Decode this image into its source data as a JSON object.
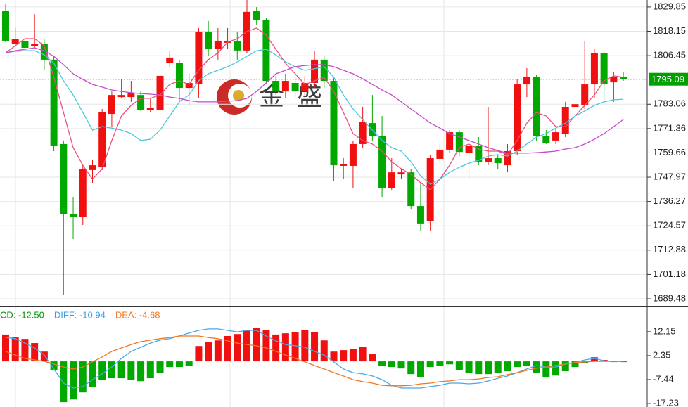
{
  "watermark": "金 盛",
  "chart_data": [
    {
      "type": "candlestick",
      "ylim": [
        1686.1,
        1833.2
      ],
      "yticks": [
        1829.85,
        1818.15,
        1806.45,
        1783.06,
        1771.36,
        1759.66,
        1747.97,
        1736.27,
        1724.57,
        1712.88,
        1701.18,
        1689.48
      ],
      "grid": true,
      "last_price": 1795.09,
      "last_price_color": "#00a000",
      "up_color": "#f01010",
      "down_color": "#00a800",
      "open": [
        1828.1,
        1812.2,
        1813.6,
        1810.9,
        1812.2,
        1804.5,
        1763.9,
        1730.1,
        1729.0,
        1751.4,
        1752.7,
        1778.4,
        1786.5,
        1786.5,
        1787.5,
        1780.1,
        1780.1,
        1802.8,
        1802.8,
        1790.9,
        1792.6,
        1818.0,
        1809.5,
        1812.6,
        1813.6,
        1808.9,
        1828.1,
        1823.7,
        1794.3,
        1789.2,
        1793.3,
        1789.2,
        1793.3,
        1804.5,
        1794.3,
        1753.4,
        1753.4,
        1763.9,
        1774.0,
        1767.9,
        1742.6,
        1749.3,
        1750.3,
        1734.1,
        1726.7,
        1756.8,
        1761.2,
        1769.6,
        1759.5,
        1762.9,
        1755.4,
        1757.1,
        1753.7,
        1760.5,
        1792.6,
        1796.0,
        1767.9,
        1765.6,
        1768.9,
        1781.8,
        1782.5,
        1792.6,
        1807.8,
        1793.6,
        1796.0
      ],
      "high": [
        1831.5,
        1819.7,
        1816.3,
        1826.4,
        1814.6,
        1806.1,
        1765.6,
        1738.5,
        1753.7,
        1756.1,
        1780.8,
        1789.2,
        1795.3,
        1794.3,
        1789.2,
        1785.9,
        1797.7,
        1808.5,
        1804.5,
        1797.7,
        1819.7,
        1823.1,
        1819.7,
        1819.7,
        1818.0,
        1833.2,
        1829.8,
        1824.7,
        1796.7,
        1797.7,
        1796.7,
        1796.7,
        1808.5,
        1806.1,
        1796.0,
        1757.1,
        1765.6,
        1781.8,
        1787.5,
        1777.4,
        1757.1,
        1752.0,
        1752.0,
        1745.3,
        1758.8,
        1763.9,
        1770.6,
        1770.6,
        1767.3,
        1767.3,
        1781.8,
        1758.8,
        1763.9,
        1795.0,
        1800.4,
        1797.0,
        1770.6,
        1771.7,
        1784.2,
        1785.9,
        1813.6,
        1809.5,
        1808.5,
        1798.4,
        1798.4
      ],
      "low": [
        1812.9,
        1811.2,
        1808.9,
        1810.2,
        1799.4,
        1760.5,
        1691.2,
        1718.2,
        1725.0,
        1745.3,
        1751.4,
        1772.3,
        1785.9,
        1784.2,
        1779.8,
        1779.1,
        1776.4,
        1801.1,
        1784.2,
        1782.5,
        1785.9,
        1806.1,
        1804.5,
        1809.5,
        1804.5,
        1807.8,
        1821.4,
        1792.6,
        1787.5,
        1785.9,
        1786.5,
        1785.9,
        1790.9,
        1790.9,
        1746.0,
        1747.0,
        1742.6,
        1762.2,
        1765.6,
        1738.5,
        1741.9,
        1747.0,
        1732.4,
        1722.3,
        1722.3,
        1755.4,
        1759.5,
        1758.1,
        1747.0,
        1753.7,
        1753.7,
        1752.0,
        1750.3,
        1758.8,
        1786.5,
        1765.6,
        1763.9,
        1763.9,
        1767.3,
        1780.8,
        1780.8,
        1785.9,
        1784.2,
        1784.2,
        1794.3
      ],
      "close": [
        1813.6,
        1814.6,
        1810.2,
        1812.2,
        1804.5,
        1762.9,
        1730.1,
        1729.0,
        1752.0,
        1753.7,
        1779.1,
        1787.5,
        1787.5,
        1788.2,
        1780.4,
        1781.4,
        1796.7,
        1805.5,
        1790.9,
        1793.3,
        1818.0,
        1809.5,
        1813.6,
        1813.6,
        1808.9,
        1827.5,
        1823.7,
        1794.3,
        1789.2,
        1794.3,
        1789.2,
        1793.3,
        1804.5,
        1794.3,
        1753.7,
        1754.4,
        1763.9,
        1774.7,
        1767.9,
        1742.6,
        1750.3,
        1750.3,
        1734.1,
        1725.7,
        1757.1,
        1761.2,
        1769.6,
        1760.1,
        1762.9,
        1755.4,
        1757.1,
        1754.7,
        1760.5,
        1792.6,
        1796.0,
        1767.9,
        1764.5,
        1769.6,
        1781.8,
        1783.1,
        1792.6,
        1807.8,
        1792.6,
        1796.0,
        1795.3
      ],
      "series": [
        {
          "color": "#ec4f7c",
          "values": [
            1807.8,
            1811.2,
            1814.6,
            1814.6,
            1811.2,
            1796.0,
            1779.1,
            1762.2,
            1753.7,
            1747.0,
            1752.0,
            1765.6,
            1777.4,
            1782.5,
            1785.9,
            1785.9,
            1787.5,
            1792.6,
            1794.3,
            1792.6,
            1799.4,
            1804.5,
            1807.8,
            1812.9,
            1814.6,
            1818.0,
            1819.7,
            1816.3,
            1809.5,
            1802.8,
            1797.7,
            1792.6,
            1794.3,
            1796.0,
            1789.2,
            1779.1,
            1768.9,
            1765.6,
            1763.9,
            1760.5,
            1755.4,
            1752.0,
            1749.3,
            1745.3,
            1741.9,
            1747.0,
            1753.7,
            1762.2,
            1763.9,
            1761.5,
            1760.5,
            1760.5,
            1758.8,
            1765.6,
            1774.0,
            1779.1,
            1777.4,
            1772.3,
            1772.3,
            1777.4,
            1782.5,
            1787.5,
            1794.3,
            1796.7,
            1796.0
          ]
        },
        {
          "color": "#4cc6dc",
          "values": [
            1807.8,
            1808.5,
            1808.8,
            1808.8,
            1806.8,
            1802.8,
            1794.3,
            1787.5,
            1779.1,
            1770.6,
            1772.3,
            1771.6,
            1770.6,
            1768.9,
            1765.6,
            1766.2,
            1770.6,
            1777.4,
            1784.2,
            1787.5,
            1794.3,
            1797.7,
            1799.4,
            1801.1,
            1803.4,
            1806.1,
            1808.8,
            1809.5,
            1806.8,
            1803.4,
            1801.1,
            1799.4,
            1800.1,
            1801.1,
            1796.0,
            1787.5,
            1780.8,
            1775.7,
            1770.6,
            1765.6,
            1762.2,
            1760.5,
            1755.4,
            1748.6,
            1744.6,
            1747.0,
            1750.3,
            1752.7,
            1754.7,
            1756.1,
            1758.1,
            1758.8,
            1758.1,
            1760.5,
            1763.9,
            1767.3,
            1768.9,
            1771.6,
            1774.0,
            1777.4,
            1779.8,
            1782.5,
            1784.2,
            1785.2,
            1785.5
          ]
        },
        {
          "color": "#c44cc8",
          "values": [
            1807.8,
            1808.8,
            1809.5,
            1810.2,
            1808.8,
            1806.1,
            1802.1,
            1797.7,
            1795.0,
            1792.6,
            1791.3,
            1789.9,
            1789.2,
            1788.6,
            1788.2,
            1787.9,
            1787.5,
            1786.5,
            1785.9,
            1784.8,
            1784.2,
            1784.2,
            1784.2,
            1784.5,
            1784.8,
            1785.9,
            1789.2,
            1793.3,
            1797.7,
            1799.4,
            1801.1,
            1801.7,
            1802.1,
            1802.1,
            1801.1,
            1799.4,
            1797.7,
            1795.3,
            1792.6,
            1789.9,
            1787.5,
            1784.2,
            1780.8,
            1777.4,
            1774.0,
            1771.6,
            1768.9,
            1767.3,
            1765.6,
            1763.9,
            1762.2,
            1760.8,
            1759.5,
            1759.5,
            1759.5,
            1759.8,
            1760.1,
            1760.5,
            1761.5,
            1762.2,
            1763.9,
            1766.2,
            1768.9,
            1772.3,
            1775.7
          ]
        }
      ]
    },
    {
      "type": "macd",
      "legend": [
        {
          "label": "CD: -12.50",
          "color": "#009a00"
        },
        {
          "label": "DIFF: -10.94",
          "color": "#3a9fe0"
        },
        {
          "label": "DEA: -4.68",
          "color": "#f07820"
        }
      ],
      "ylim": [
        -18.4,
        22.2
      ],
      "yticks": [
        12.15,
        2.35,
        -7.44,
        -17.23
      ],
      "up_color": "#f01010",
      "down_color": "#00a800",
      "histogram": [
        11.0,
        9.8,
        9.2,
        7.5,
        4.0,
        -3.7,
        -16.7,
        -15.6,
        -12.7,
        -10.4,
        -7.5,
        -6.9,
        -6.9,
        -7.5,
        -8.1,
        -6.9,
        -4.6,
        -2.3,
        -2.3,
        -1.7,
        6.3,
        8.1,
        8.6,
        10.4,
        11.2,
        12.7,
        13.8,
        12.7,
        11.0,
        11.5,
        12.1,
        12.7,
        12.1,
        8.6,
        4.0,
        4.6,
        5.2,
        5.8,
        2.9,
        -1.7,
        -2.3,
        -2.9,
        -5.2,
        -6.3,
        -2.3,
        -1.7,
        -1.2,
        -3.5,
        -4.6,
        -5.2,
        -5.2,
        -4.6,
        -4.0,
        -2.3,
        -1.7,
        -4.6,
        -6.3,
        -5.8,
        -4.0,
        -2.3,
        -0.6,
        1.7,
        0.6,
        -0.2,
        -0.3
      ],
      "series": [
        {
          "color": "#4aa8e8",
          "values": [
            9.8,
            9.3,
            7.5,
            5.5,
            2.6,
            -3.1,
            -8.9,
            -10.9,
            -10.3,
            -7.5,
            -5.1,
            -2.3,
            1.2,
            4.1,
            5.8,
            7.5,
            8.7,
            9.3,
            10.4,
            11.6,
            12.7,
            13.3,
            13.3,
            12.7,
            12.1,
            12.7,
            12.7,
            10.4,
            8.4,
            6.9,
            6.4,
            5.8,
            4.1,
            2.6,
            -0.2,
            -3.1,
            -4.6,
            -5.1,
            -6.0,
            -7.5,
            -9.8,
            -10.9,
            -10.9,
            -10.9,
            -10.3,
            -9.8,
            -8.9,
            -8.9,
            -9.2,
            -8.9,
            -8.0,
            -6.9,
            -6.0,
            -4.6,
            -3.1,
            -1.7,
            -2.3,
            -2.3,
            -1.1,
            -0.5,
            0.6,
            1.2,
            0.3,
            0.0,
            0.0
          ]
        },
        {
          "color": "#f07820",
          "values": [
            4.1,
            2.6,
            1.2,
            0.6,
            0.0,
            -1.1,
            -2.3,
            -3.1,
            -2.3,
            -0.2,
            1.8,
            4.1,
            5.5,
            6.9,
            8.1,
            8.7,
            9.3,
            9.8,
            10.4,
            10.4,
            10.4,
            9.8,
            9.3,
            8.4,
            7.5,
            6.9,
            6.4,
            5.5,
            4.1,
            2.6,
            1.2,
            -0.2,
            -1.7,
            -3.1,
            -4.6,
            -6.0,
            -7.5,
            -8.3,
            -8.9,
            -9.8,
            -10.0,
            -10.0,
            -9.8,
            -9.2,
            -8.9,
            -8.3,
            -8.0,
            -7.5,
            -7.5,
            -7.2,
            -6.6,
            -6.3,
            -5.4,
            -4.6,
            -3.7,
            -2.8,
            -2.3,
            -1.7,
            -1.1,
            -0.5,
            -0.2,
            0.0,
            0.0,
            0.0,
            0.0
          ]
        }
      ]
    }
  ]
}
